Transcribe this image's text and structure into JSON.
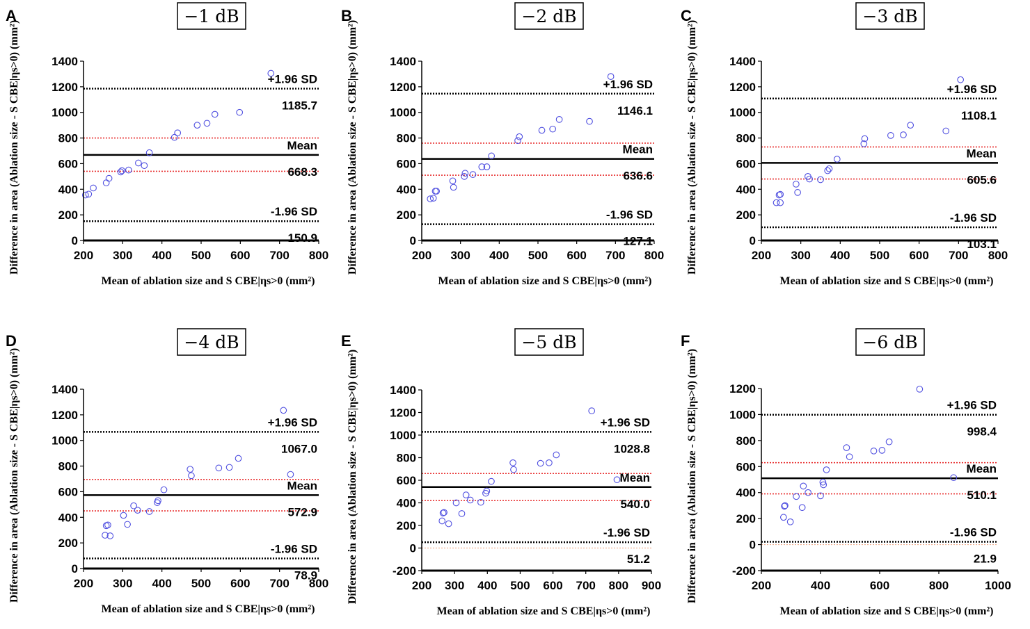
{
  "figure": {
    "panel_count": 6,
    "colors": {
      "axis": "#000000",
      "points": "#4f4fe0",
      "mean_line": "#000000",
      "loa_line": "#000000",
      "ci_line": "#e83030",
      "zero_line": "#f0b090"
    }
  },
  "chart_data": [
    {
      "panel": "A",
      "title": "−1 dB",
      "type": "scatter",
      "xlabel": "Mean of ablation size and S CBE|ηs>0 (mm²)",
      "ylabel": "Difference in area (Ablation size - S CBE|ηs>0) (mm²)",
      "xlim": [
        200,
        800
      ],
      "ylim": [
        0,
        1400
      ],
      "xticks": [
        200,
        300,
        400,
        500,
        600,
        700,
        800
      ],
      "yticks": [
        0,
        200,
        400,
        600,
        800,
        1000,
        1200,
        1400
      ],
      "upper_label": "+1.96 SD",
      "upper_value": 1185.7,
      "upper_value_text": "1185.7",
      "mean_label": "Mean",
      "mean_value": 668.3,
      "mean_value_text": "668.3",
      "lower_label": "-1.96 SD",
      "lower_value": 150.9,
      "lower_value_text": "150.9",
      "ci_upper": 800,
      "ci_lower": 540,
      "points": [
        [
          205,
          355
        ],
        [
          213,
          362
        ],
        [
          225,
          410
        ],
        [
          258,
          450
        ],
        [
          265,
          485
        ],
        [
          295,
          535
        ],
        [
          298,
          545
        ],
        [
          315,
          550
        ],
        [
          340,
          605
        ],
        [
          355,
          585
        ],
        [
          368,
          685
        ],
        [
          432,
          805
        ],
        [
          440,
          840
        ],
        [
          490,
          900
        ],
        [
          515,
          915
        ],
        [
          535,
          985
        ],
        [
          598,
          1000
        ],
        [
          678,
          1305
        ]
      ]
    },
    {
      "panel": "B",
      "title": "−2 dB",
      "type": "scatter",
      "xlabel": "Mean of ablation size and S CBE|ηs>0 (mm²)",
      "ylabel": "Difference in area (Ablation size - S CBE|ηs>0) (mm²)",
      "xlim": [
        200,
        800
      ],
      "ylim": [
        0,
        1400
      ],
      "xticks": [
        200,
        300,
        400,
        500,
        600,
        700,
        800
      ],
      "yticks": [
        0,
        200,
        400,
        600,
        800,
        1000,
        1200,
        1400
      ],
      "upper_label": "+1.96 SD",
      "upper_value": 1146.1,
      "upper_value_text": "1146.1",
      "mean_label": "Mean",
      "mean_value": 636.6,
      "mean_value_text": "636.6",
      "lower_label": "-1.96 SD",
      "lower_value": 127.1,
      "lower_value_text": "127.1",
      "ci_upper": 760,
      "ci_lower": 510,
      "points": [
        [
          222,
          325
        ],
        [
          230,
          330
        ],
        [
          235,
          385
        ],
        [
          238,
          385
        ],
        [
          282,
          415
        ],
        [
          280,
          465
        ],
        [
          310,
          500
        ],
        [
          312,
          525
        ],
        [
          332,
          515
        ],
        [
          355,
          575
        ],
        [
          368,
          575
        ],
        [
          380,
          660
        ],
        [
          448,
          780
        ],
        [
          452,
          810
        ],
        [
          510,
          860
        ],
        [
          538,
          870
        ],
        [
          555,
          945
        ],
        [
          633,
          930
        ],
        [
          688,
          1280
        ]
      ]
    },
    {
      "panel": "C",
      "title": "−3 dB",
      "type": "scatter",
      "xlabel": "Mean of ablation size and S CBE|ηs>0 (mm²)",
      "ylabel": "Difference in area (Ablation size - S CBE|ηs>0) (mm²)",
      "xlim": [
        200,
        800
      ],
      "ylim": [
        0,
        1400
      ],
      "xticks": [
        200,
        300,
        400,
        500,
        600,
        700,
        800
      ],
      "yticks": [
        0,
        200,
        400,
        600,
        800,
        1000,
        1200,
        1400
      ],
      "upper_label": "+1.96 SD",
      "upper_value": 1108.1,
      "upper_value_text": "1108.1",
      "mean_label": "Mean",
      "mean_value": 605.6,
      "mean_value_text": "605.6",
      "lower_label": "-1.96 SD",
      "lower_value": 103.1,
      "lower_value_text": "103.1",
      "ci_upper": 730,
      "ci_lower": 480,
      "points": [
        [
          238,
          295
        ],
        [
          245,
          355
        ],
        [
          248,
          295
        ],
        [
          248,
          360
        ],
        [
          288,
          440
        ],
        [
          292,
          375
        ],
        [
          318,
          500
        ],
        [
          322,
          480
        ],
        [
          350,
          475
        ],
        [
          368,
          545
        ],
        [
          372,
          560
        ],
        [
          392,
          635
        ],
        [
          460,
          755
        ],
        [
          462,
          795
        ],
        [
          528,
          820
        ],
        [
          560,
          825
        ],
        [
          578,
          900
        ],
        [
          668,
          855
        ],
        [
          705,
          1255
        ]
      ]
    },
    {
      "panel": "D",
      "title": "−4 dB",
      "type": "scatter",
      "xlabel": "Mean of ablation size and S CBE|ηs>0 (mm²)",
      "ylabel": "Difference in area (Ablation size - S CBE|ηs>0) (mm²)",
      "xlim": [
        200,
        800
      ],
      "ylim": [
        0,
        1400
      ],
      "xticks": [
        200,
        300,
        400,
        500,
        600,
        700,
        800
      ],
      "yticks": [
        0,
        200,
        400,
        600,
        800,
        1000,
        1200,
        1400
      ],
      "upper_label": "+1.96 SD",
      "upper_value": 1067.0,
      "upper_value_text": "1067.0",
      "mean_label": "Mean",
      "mean_value": 572.9,
      "mean_value_text": "572.9",
      "lower_label": "-1.96 SD",
      "lower_value": 78.9,
      "lower_value_text": "78.9",
      "ci_upper": 695,
      "ci_lower": 450,
      "points": [
        [
          255,
          260
        ],
        [
          258,
          335
        ],
        [
          262,
          340
        ],
        [
          268,
          255
        ],
        [
          302,
          415
        ],
        [
          312,
          345
        ],
        [
          328,
          490
        ],
        [
          338,
          455
        ],
        [
          368,
          445
        ],
        [
          388,
          515
        ],
        [
          390,
          530
        ],
        [
          405,
          615
        ],
        [
          472,
          775
        ],
        [
          475,
          725
        ],
        [
          545,
          785
        ],
        [
          572,
          790
        ],
        [
          595,
          860
        ],
        [
          710,
          1235
        ],
        [
          728,
          735
        ]
      ]
    },
    {
      "panel": "E",
      "title": "−5 dB",
      "type": "scatter",
      "xlabel": "Mean of ablation size and S CBE|ηs>0 (mm²)",
      "ylabel": "Difference in area (Ablation size - S CBE|ηs>0) (mm²)",
      "xlim": [
        200,
        900
      ],
      "ylim": [
        -200,
        1400
      ],
      "xticks": [
        200,
        300,
        400,
        500,
        600,
        700,
        800,
        900
      ],
      "yticks": [
        -200,
        0,
        200,
        400,
        600,
        800,
        1000,
        1200,
        1400
      ],
      "upper_label": "+1.96 SD",
      "upper_value": 1028.8,
      "upper_value_text": "1028.8",
      "mean_label": "Mean",
      "mean_value": 540.0,
      "mean_value_text": "540.0",
      "lower_label": "-1.96 SD",
      "lower_value": 51.2,
      "lower_value_text": "51.2",
      "ci_upper": 660,
      "ci_lower": 420,
      "points": [
        [
          262,
          240
        ],
        [
          265,
          310
        ],
        [
          268,
          315
        ],
        [
          282,
          215
        ],
        [
          305,
          400
        ],
        [
          322,
          305
        ],
        [
          335,
          470
        ],
        [
          348,
          425
        ],
        [
          380,
          405
        ],
        [
          395,
          485
        ],
        [
          398,
          505
        ],
        [
          412,
          590
        ],
        [
          478,
          755
        ],
        [
          480,
          695
        ],
        [
          562,
          750
        ],
        [
          588,
          755
        ],
        [
          610,
          825
        ],
        [
          718,
          1215
        ],
        [
          795,
          605
        ]
      ]
    },
    {
      "panel": "F",
      "title": "−6 dB",
      "type": "scatter",
      "xlabel": "Mean of ablation size and S CBE|ηs>0 (mm²)",
      "ylabel": "Difference in area (Ablation size - S CBE|ηs>0) (mm²)",
      "xlim": [
        200,
        1000
      ],
      "ylim": [
        -200,
        1200
      ],
      "xticks": [
        200,
        400,
        600,
        800,
        1000
      ],
      "yticks": [
        -200,
        0,
        200,
        400,
        600,
        800,
        1000,
        1200
      ],
      "upper_label": "+1.96 SD",
      "upper_value": 998.4,
      "upper_value_text": "998.4",
      "mean_label": "Mean",
      "mean_value": 510.1,
      "mean_value_text": "510.1",
      "lower_label": "-1.96 SD",
      "lower_value": 21.9,
      "lower_value_text": "21.9",
      "ci_upper": 630,
      "ci_lower": 390,
      "points": [
        [
          275,
          210
        ],
        [
          278,
          295
        ],
        [
          280,
          300
        ],
        [
          298,
          175
        ],
        [
          318,
          370
        ],
        [
          338,
          285
        ],
        [
          342,
          450
        ],
        [
          358,
          400
        ],
        [
          400,
          375
        ],
        [
          408,
          480
        ],
        [
          410,
          460
        ],
        [
          420,
          575
        ],
        [
          488,
          745
        ],
        [
          498,
          675
        ],
        [
          580,
          720
        ],
        [
          608,
          725
        ],
        [
          632,
          790
        ],
        [
          735,
          1195
        ],
        [
          850,
          515
        ]
      ]
    }
  ]
}
